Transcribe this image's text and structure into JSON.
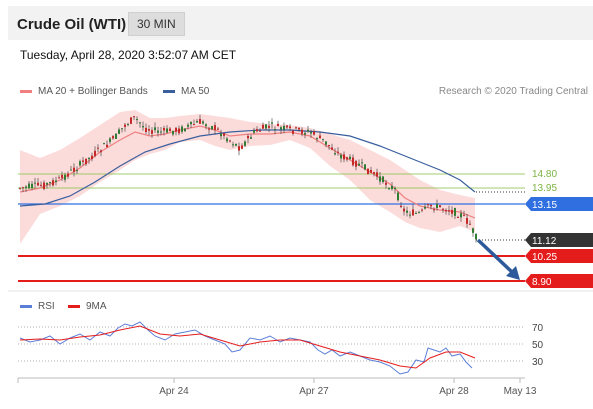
{
  "header": {
    "title": "Crude Oil (WTI)",
    "timeframe": "30 MIN"
  },
  "timestamp": "Tuesday, April 28, 2020 3:52:07 AM CET",
  "legend": {
    "ma20": "MA 20 + Bollinger Bands",
    "ma50": "MA 50",
    "copyright": "Research © 2020 Trading Central"
  },
  "levels": {
    "r2": "14.80",
    "r1": "13.95",
    "pivot": "13.15",
    "last": "11.12",
    "s1": "10.25",
    "s2": "8.90"
  },
  "rsi_legend": {
    "rsi": "RSI",
    "ma": "9MA"
  },
  "rsi_levels": [
    "70",
    "50",
    "30"
  ],
  "x_axis": [
    "Apr 24",
    "Apr 27",
    "Apr 28",
    "May 13"
  ],
  "colors": {
    "ma20": "#f08080",
    "band": "#fbd0d0",
    "ma50": "#3a5f9e",
    "pivot": "#2f6fe0",
    "support": "#e51c1c",
    "resistance": "#8bc34a",
    "last": "#333333",
    "arrow": "#2d5a9a",
    "rsi": "#5b7ed6",
    "rsi_ma": "#e51c1c"
  }
}
